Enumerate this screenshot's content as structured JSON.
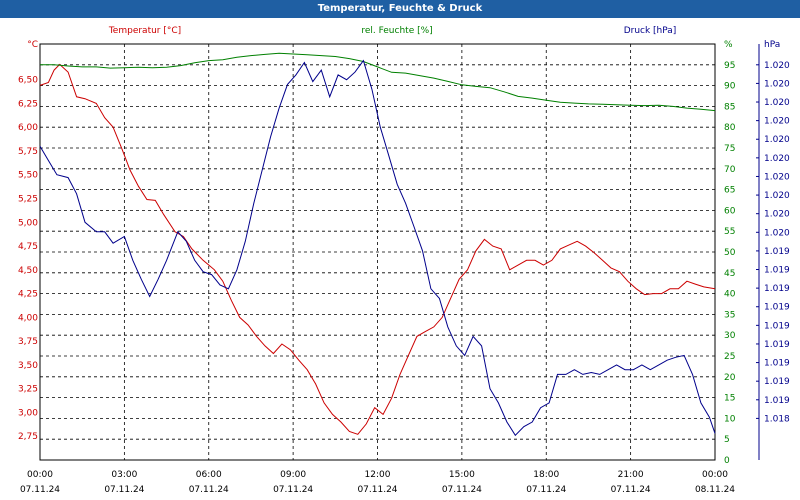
{
  "window": {
    "title": "Temperatur, Feuchte & Druck"
  },
  "colors": {
    "temperature": "#cc0000",
    "humidity": "#008000",
    "pressure": "#00008b",
    "titlebar": "#1f5fa3",
    "grid": "#000000"
  },
  "chart_data": {
    "type": "line",
    "title": "Temperatur, Feuchte & Druck",
    "grid": true,
    "x": {
      "ticks": [
        "00:00",
        "03:00",
        "06:00",
        "09:00",
        "12:00",
        "15:00",
        "18:00",
        "21:00",
        "00:00"
      ],
      "dates": [
        "07.11.24",
        "07.11.24",
        "07.11.24",
        "07.11.24",
        "07.11.24",
        "07.11.24",
        "07.11.24",
        "07.11.24",
        "08.11.24"
      ],
      "range_hours": [
        0,
        24
      ]
    },
    "axes": {
      "temperature": {
        "label": "Temperatur [°C]",
        "unit": "°C",
        "range": [
          2.5,
          6.875
        ],
        "ticks": [
          "2,75",
          "3,00",
          "3,25",
          "3,50",
          "3,75",
          "4,00",
          "4,25",
          "4,50",
          "4,75",
          "5,00",
          "5,25",
          "5,50",
          "5,75",
          "6,00",
          "6,25",
          "6,50"
        ]
      },
      "humidity": {
        "label": "rel. Feuchte [%]",
        "unit": "%",
        "range": [
          0,
          100
        ],
        "ticks": [
          "0",
          "5",
          "10",
          "15",
          "20",
          "25",
          "30",
          "35",
          "40",
          "45",
          "50",
          "55",
          "60",
          "65",
          "70",
          "75",
          "80",
          "85",
          "90",
          "95"
        ]
      },
      "pressure": {
        "label": "Druck [hPa]",
        "unit": "hPa",
        "ticks": [
          "1.018",
          "1.019",
          "1.019",
          "1.019",
          "1.019",
          "1.019",
          "1.019",
          "1.019",
          "1.019",
          "1.019",
          "1.020",
          "1.020",
          "1.020",
          "1.020",
          "1.020",
          "1.020",
          "1.020",
          "1.020",
          "1.020",
          "1.020"
        ]
      }
    },
    "series": [
      {
        "name": "Temperatur [°C]",
        "axis": "temperature",
        "color": "#cc0000",
        "points": [
          [
            0,
            6.44
          ],
          [
            0.3,
            6.47
          ],
          [
            0.5,
            6.6
          ],
          [
            0.7,
            6.66
          ],
          [
            1,
            6.58
          ],
          [
            1.3,
            6.32
          ],
          [
            1.6,
            6.3
          ],
          [
            2,
            6.25
          ],
          [
            2.3,
            6.1
          ],
          [
            2.6,
            6.0
          ],
          [
            2.9,
            5.78
          ],
          [
            3.2,
            5.55
          ],
          [
            3.5,
            5.38
          ],
          [
            3.8,
            5.24
          ],
          [
            4.1,
            5.23
          ],
          [
            4.4,
            5.08
          ],
          [
            4.8,
            4.9
          ],
          [
            5.1,
            4.85
          ],
          [
            5.4,
            4.72
          ],
          [
            5.8,
            4.6
          ],
          [
            6.2,
            4.5
          ],
          [
            6.5,
            4.38
          ],
          [
            6.8,
            4.18
          ],
          [
            7.1,
            4.0
          ],
          [
            7.4,
            3.92
          ],
          [
            7.7,
            3.8
          ],
          [
            8,
            3.7
          ],
          [
            8.3,
            3.62
          ],
          [
            8.6,
            3.72
          ],
          [
            8.9,
            3.66
          ],
          [
            9.2,
            3.55
          ],
          [
            9.5,
            3.45
          ],
          [
            9.8,
            3.3
          ],
          [
            10.1,
            3.1
          ],
          [
            10.4,
            2.98
          ],
          [
            10.7,
            2.9
          ],
          [
            11,
            2.8
          ],
          [
            11.3,
            2.77
          ],
          [
            11.6,
            2.88
          ],
          [
            11.9,
            3.05
          ],
          [
            12.2,
            2.98
          ],
          [
            12.5,
            3.15
          ],
          [
            12.8,
            3.4
          ],
          [
            13.1,
            3.6
          ],
          [
            13.4,
            3.8
          ],
          [
            13.7,
            3.85
          ],
          [
            14,
            3.9
          ],
          [
            14.3,
            4.0
          ],
          [
            14.6,
            4.2
          ],
          [
            14.9,
            4.4
          ],
          [
            15.2,
            4.5
          ],
          [
            15.5,
            4.7
          ],
          [
            15.8,
            4.82
          ],
          [
            16.1,
            4.75
          ],
          [
            16.4,
            4.72
          ],
          [
            16.7,
            4.5
          ],
          [
            17,
            4.55
          ],
          [
            17.3,
            4.6
          ],
          [
            17.6,
            4.6
          ],
          [
            17.9,
            4.55
          ],
          [
            18.2,
            4.6
          ],
          [
            18.5,
            4.72
          ],
          [
            18.8,
            4.76
          ],
          [
            19.1,
            4.8
          ],
          [
            19.4,
            4.75
          ],
          [
            19.7,
            4.68
          ],
          [
            20,
            4.6
          ],
          [
            20.3,
            4.52
          ],
          [
            20.6,
            4.48
          ],
          [
            20.9,
            4.38
          ],
          [
            21.2,
            4.3
          ],
          [
            21.5,
            4.24
          ],
          [
            21.8,
            4.25
          ],
          [
            22.1,
            4.25
          ],
          [
            22.4,
            4.3
          ],
          [
            22.7,
            4.3
          ],
          [
            23,
            4.38
          ],
          [
            23.3,
            4.35
          ],
          [
            23.6,
            4.32
          ],
          [
            24,
            4.3
          ]
        ]
      },
      {
        "name": "rel. Feuchte [%]",
        "axis": "humidity",
        "color": "#008000",
        "points": [
          [
            0,
            95
          ],
          [
            0.5,
            95
          ],
          [
            1,
            94.7
          ],
          [
            1.5,
            94.5
          ],
          [
            2,
            94.5
          ],
          [
            2.5,
            94.2
          ],
          [
            3,
            94.3
          ],
          [
            3.5,
            94.4
          ],
          [
            4,
            94.3
          ],
          [
            4.5,
            94.4
          ],
          [
            5,
            94.8
          ],
          [
            5.5,
            95.5
          ],
          [
            6,
            96
          ],
          [
            6.5,
            96.2
          ],
          [
            7,
            96.8
          ],
          [
            7.5,
            97.2
          ],
          [
            8,
            97.5
          ],
          [
            8.5,
            97.8
          ],
          [
            9,
            97.6
          ],
          [
            9.5,
            97.4
          ],
          [
            10,
            97.2
          ],
          [
            10.5,
            97
          ],
          [
            11,
            96.5
          ],
          [
            11.5,
            95.8
          ],
          [
            12,
            94.5
          ],
          [
            12.5,
            93.2
          ],
          [
            13,
            93
          ],
          [
            13.5,
            92.4
          ],
          [
            14,
            91.8
          ],
          [
            14.5,
            91
          ],
          [
            15,
            90.2
          ],
          [
            15.5,
            89.8
          ],
          [
            16,
            89.5
          ],
          [
            16.5,
            88.5
          ],
          [
            17,
            87.4
          ],
          [
            17.5,
            87
          ],
          [
            18,
            86.5
          ],
          [
            18.5,
            86
          ],
          [
            19,
            85.8
          ],
          [
            19.5,
            85.6
          ],
          [
            20,
            85.5
          ],
          [
            20.5,
            85.4
          ],
          [
            21,
            85.3
          ],
          [
            21.5,
            85.2
          ],
          [
            22,
            85.3
          ],
          [
            22.5,
            85
          ],
          [
            23,
            84.6
          ],
          [
            23.5,
            84.3
          ],
          [
            24,
            84
          ]
        ]
      },
      {
        "name": "Druck [hPa]",
        "axis": "pressure",
        "color": "#00008b",
        "points": [
          [
            0,
            5.8
          ],
          [
            0.3,
            5.65
          ],
          [
            0.6,
            5.5
          ],
          [
            1,
            5.47
          ],
          [
            1.3,
            5.3
          ],
          [
            1.6,
            5.0
          ],
          [
            2,
            4.9
          ],
          [
            2.3,
            4.9
          ],
          [
            2.6,
            4.78
          ],
          [
            3,
            4.85
          ],
          [
            3.3,
            4.6
          ],
          [
            3.6,
            4.4
          ],
          [
            3.9,
            4.22
          ],
          [
            4.2,
            4.4
          ],
          [
            4.5,
            4.6
          ],
          [
            4.9,
            4.9
          ],
          [
            5.2,
            4.8
          ],
          [
            5.5,
            4.6
          ],
          [
            5.8,
            4.48
          ],
          [
            6.1,
            4.45
          ],
          [
            6.4,
            4.34
          ],
          [
            6.7,
            4.3
          ],
          [
            7,
            4.5
          ],
          [
            7.3,
            4.8
          ],
          [
            7.6,
            5.2
          ],
          [
            7.9,
            5.55
          ],
          [
            8.2,
            5.9
          ],
          [
            8.5,
            6.2
          ],
          [
            8.8,
            6.45
          ],
          [
            9.1,
            6.55
          ],
          [
            9.4,
            6.68
          ],
          [
            9.7,
            6.48
          ],
          [
            10,
            6.6
          ],
          [
            10.3,
            6.32
          ],
          [
            10.6,
            6.55
          ],
          [
            10.9,
            6.5
          ],
          [
            11.2,
            6.58
          ],
          [
            11.5,
            6.7
          ],
          [
            11.8,
            6.4
          ],
          [
            12.1,
            6.0
          ],
          [
            12.4,
            5.7
          ],
          [
            12.7,
            5.4
          ],
          [
            13,
            5.2
          ],
          [
            13.3,
            4.95
          ],
          [
            13.6,
            4.7
          ],
          [
            13.9,
            4.3
          ],
          [
            14.2,
            4.2
          ],
          [
            14.5,
            3.9
          ],
          [
            14.8,
            3.7
          ],
          [
            15.1,
            3.6
          ],
          [
            15.4,
            3.8
          ],
          [
            15.7,
            3.7
          ],
          [
            16,
            3.25
          ],
          [
            16.3,
            3.1
          ],
          [
            16.6,
            2.9
          ],
          [
            16.9,
            2.76
          ],
          [
            17.2,
            2.85
          ],
          [
            17.5,
            2.9
          ],
          [
            17.8,
            3.05
          ],
          [
            18.1,
            3.1
          ],
          [
            18.4,
            3.4
          ],
          [
            18.7,
            3.4
          ],
          [
            19,
            3.45
          ],
          [
            19.3,
            3.4
          ],
          [
            19.6,
            3.42
          ],
          [
            19.9,
            3.4
          ],
          [
            20.2,
            3.45
          ],
          [
            20.5,
            3.5
          ],
          [
            20.8,
            3.45
          ],
          [
            21.1,
            3.45
          ],
          [
            21.4,
            3.5
          ],
          [
            21.7,
            3.45
          ],
          [
            22,
            3.5
          ],
          [
            22.3,
            3.55
          ],
          [
            22.6,
            3.58
          ],
          [
            22.9,
            3.6
          ],
          [
            23.2,
            3.4
          ],
          [
            23.5,
            3.1
          ],
          [
            23.8,
            2.95
          ],
          [
            24,
            2.78
          ]
        ]
      }
    ]
  }
}
